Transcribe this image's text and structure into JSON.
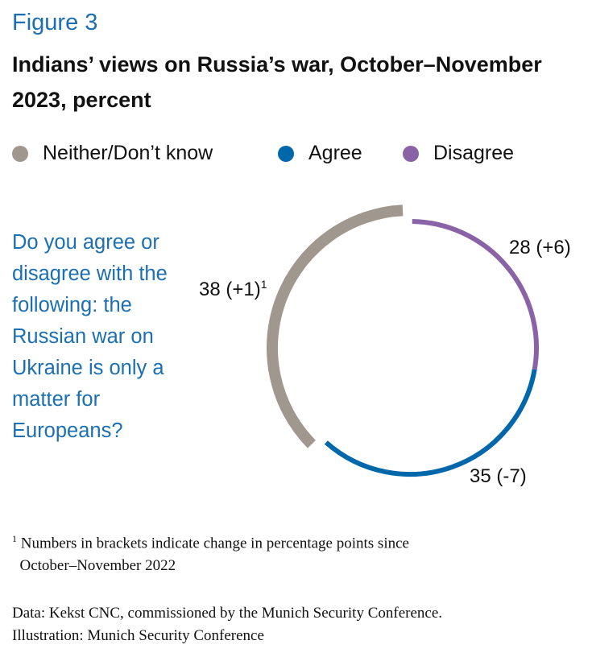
{
  "figure_label": "Figure 3",
  "chart_data": {
    "type": "pie",
    "title": "Indians’ views on Russia’s war, October–November 2023, percent",
    "question": "Do you agree or disagree with the following: the Russian war on Ukraine is only a matter for Europeans?",
    "legend": [
      "Neither/Don’t know",
      "Agree",
      "Disagree"
    ],
    "legend_position": "top",
    "series": [
      {
        "name": "Neither/Don’t know",
        "value": 38,
        "change": "+1",
        "label": "38 (+1)",
        "footnote_mark": "1",
        "color": "#a0978f"
      },
      {
        "name": "Disagree",
        "value": 28,
        "change": "+6",
        "label": "28 (+6)",
        "color": "#8a62a6"
      },
      {
        "name": "Agree",
        "value": 35,
        "change": "-7",
        "label": "35 (-7)",
        "color": "#0068aa"
      }
    ]
  },
  "footnote": {
    "mark": "1",
    "line1": "Numbers in brackets indicate change in percentage points since",
    "line2": "October–November 2022"
  },
  "source": {
    "line1": "Data: Kekst CNC, commissioned by the Munich Security Conference.",
    "line2": "Illustration: Munich Security Conference"
  }
}
